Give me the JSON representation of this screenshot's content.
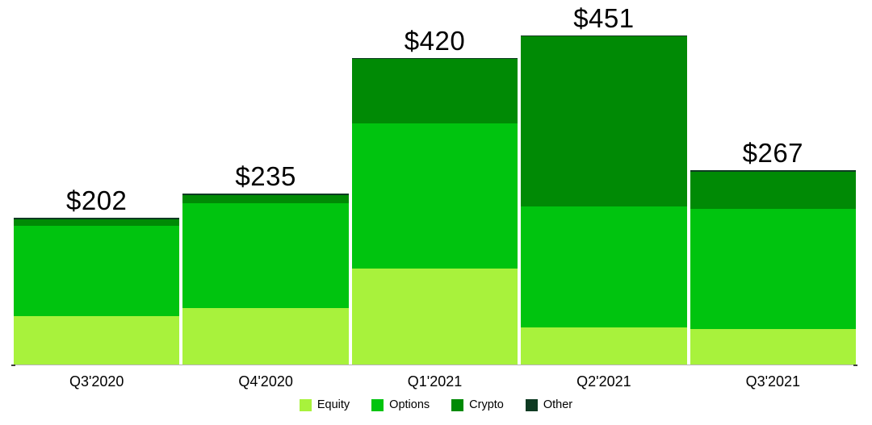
{
  "chart_data": {
    "type": "bar",
    "stacked": true,
    "categories": [
      "Q3'2020",
      "Q4'2020",
      "Q1'2021",
      "Q2'2021",
      "Q3'2021"
    ],
    "series": [
      {
        "name": "Equity",
        "color": "#A8F23C",
        "values": [
          67,
          78,
          133,
          52,
          50
        ]
      },
      {
        "name": "Options",
        "color": "#00C40F",
        "values": [
          124,
          144,
          198,
          165,
          164
        ]
      },
      {
        "name": "Crypto",
        "color": "#008A05",
        "values": [
          9,
          11,
          88,
          233,
          51
        ]
      },
      {
        "name": "Other",
        "color": "#0E3A22",
        "values": [
          2,
          2,
          1,
          1,
          2
        ]
      }
    ],
    "totals": [
      202,
      235,
      420,
      451,
      267
    ],
    "total_labels": [
      "$202",
      "$235",
      "$420",
      "$451",
      "$267"
    ],
    "ylim": [
      0,
      500
    ],
    "grid": false,
    "legend_position": "bottom",
    "legend": [
      "Equity",
      "Options",
      "Crypto",
      "Other"
    ]
  },
  "colors": {
    "axis_line": "#b4b4b4",
    "axis_tick": "#3f3f3f",
    "value_label_text": "#000000",
    "axis_label_text": "#000000",
    "legend_text": "#000000",
    "background": "#ffffff"
  }
}
